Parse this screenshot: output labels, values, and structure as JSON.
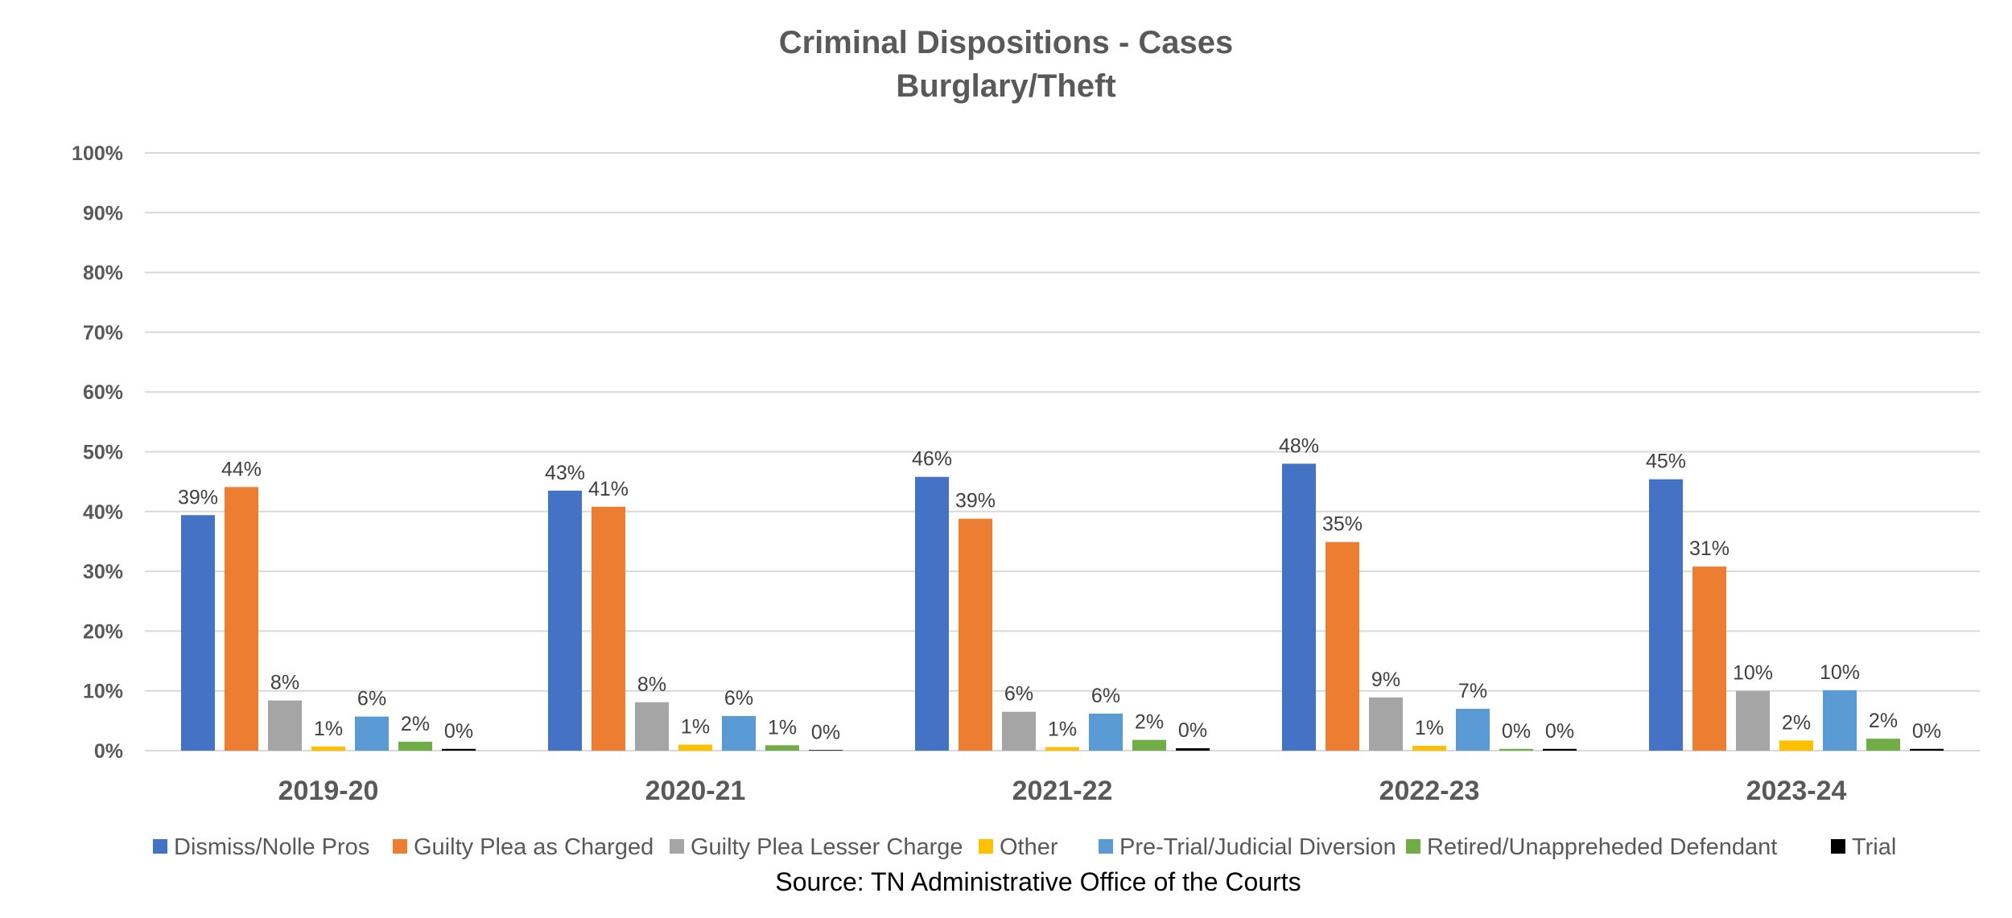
{
  "chart_data": {
    "type": "bar",
    "title": "Criminal Dispositions - Cases",
    "subtitle": "Burglary/Theft",
    "xlabel": "",
    "ylabel": "",
    "ylim": [
      0,
      100
    ],
    "y_ticks": [
      "0%",
      "10%",
      "20%",
      "30%",
      "40%",
      "50%",
      "60%",
      "70%",
      "80%",
      "90%",
      "100%"
    ],
    "grid": true,
    "legend_position": "bottom",
    "categories": [
      "2019-20",
      "2020-21",
      "2021-22",
      "2022-23",
      "2023-24"
    ],
    "series": [
      {
        "name": "Dismiss/Nolle Pros",
        "color": "#4472C4",
        "values": [
          39.4,
          43.5,
          45.8,
          48.0,
          45.4
        ],
        "labels": [
          "39%",
          "43%",
          "46%",
          "48%",
          "45%"
        ]
      },
      {
        "name": "Guilty Plea as Charged",
        "color": "#ED7D31",
        "values": [
          44.1,
          40.8,
          38.8,
          34.9,
          30.8
        ],
        "labels": [
          "44%",
          "41%",
          "39%",
          "35%",
          "31%"
        ]
      },
      {
        "name": "Guilty Plea Lesser Charge",
        "color": "#A5A5A5",
        "values": [
          8.4,
          8.1,
          6.5,
          8.9,
          10.0
        ],
        "labels": [
          "8%",
          "8%",
          "6%",
          "9%",
          "10%"
        ]
      },
      {
        "name": "Other",
        "color": "#FFC000",
        "values": [
          0.7,
          1.0,
          0.6,
          0.8,
          1.7
        ],
        "labels": [
          "1%",
          "1%",
          "1%",
          "1%",
          "2%"
        ]
      },
      {
        "name": "Pre-Trial/Judicial Diversion",
        "color": "#5B9BD5",
        "values": [
          5.7,
          5.8,
          6.2,
          7.0,
          10.1
        ],
        "labels": [
          "6%",
          "6%",
          "6%",
          "7%",
          "10%"
        ]
      },
      {
        "name": "Retired/Unappreheded Defendant",
        "color": "#70AD47",
        "values": [
          1.5,
          0.9,
          1.8,
          0.3,
          2.0
        ],
        "labels": [
          "2%",
          "1%",
          "2%",
          "0%",
          "2%"
        ]
      },
      {
        "name": "Trial",
        "color": "#000000",
        "values": [
          0.3,
          0.1,
          0.4,
          0.3,
          0.3
        ],
        "labels": [
          "0%",
          "0%",
          "0%",
          "0%",
          "0%"
        ]
      }
    ]
  },
  "source": "Source: TN Administrative Office of the Courts"
}
